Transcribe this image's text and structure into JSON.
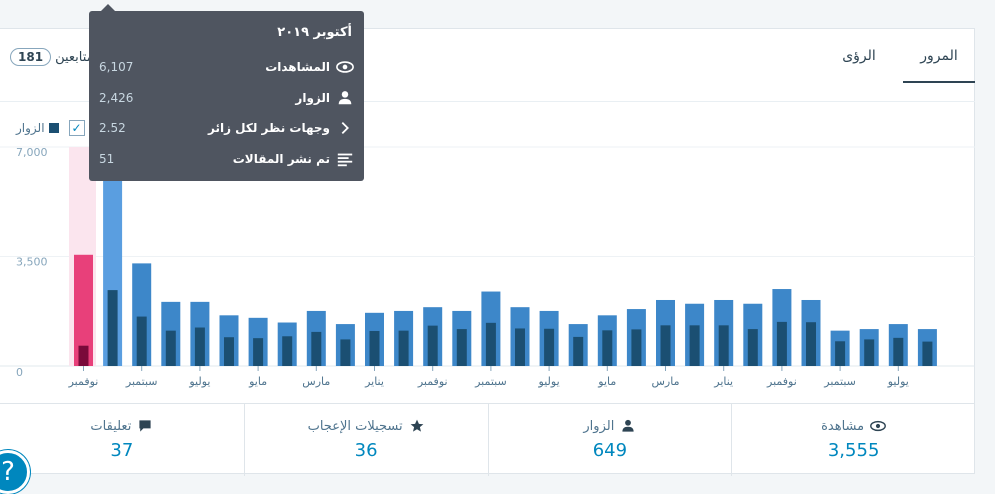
{
  "tabs": {
    "views": "المرور",
    "insights": "الرؤى"
  },
  "followers": {
    "count": "181",
    "label": "متابعين"
  },
  "legend": {
    "visitors": "الزوار"
  },
  "chart_data": {
    "type": "bar",
    "ylim": [
      0,
      7000
    ],
    "yticks": [
      "7,000",
      "3,500",
      "0"
    ],
    "categories": [
      "",
      "",
      "",
      "",
      "",
      "",
      "",
      "",
      "",
      "",
      "",
      "",
      "",
      "",
      "",
      "",
      "",
      "",
      "",
      "",
      "",
      "",
      "",
      "",
      "",
      "",
      "",
      "",
      "",
      ""
    ],
    "x_tick_labels": [
      "نوفمبر",
      "سبتمبر",
      "يوليو",
      "مايو",
      "مارس",
      "يناير",
      "نوفمبر",
      "سبتمبر",
      "يوليو",
      "مايو",
      "مارس",
      "يناير",
      "نوفمبر",
      "سبتمبر",
      "يوليو"
    ],
    "series": [
      {
        "name": "",
        "values": [
          3555,
          6107,
          3280,
          2050,
          2050,
          1620,
          1540,
          1390,
          1760,
          1340,
          1700,
          1760,
          1880,
          1760,
          2380,
          1880,
          1760,
          1340,
          1620,
          1820,
          2110,
          1990,
          2110,
          1990,
          2460,
          2110,
          1130,
          1180,
          1340,
          1180
        ]
      },
      {
        "name": "الزوار",
        "values": [
          649,
          2426,
          1580,
          1130,
          1230,
          920,
          890,
          950,
          1090,
          850,
          1120,
          1130,
          1290,
          1180,
          1380,
          1200,
          1190,
          930,
          1140,
          1170,
          1300,
          1300,
          1300,
          1180,
          1410,
          1400,
          790,
          850,
          900,
          780
        ]
      }
    ],
    "selected_index": 0,
    "highlight_index": 1
  },
  "tooltip": {
    "title": "أكتوبر ٢٠١٩",
    "rows": [
      {
        "label": "المشاهدات",
        "value": "6,107",
        "icon": "eye-icon"
      },
      {
        "label": "الزوار",
        "value": "2,426",
        "icon": "person-icon"
      },
      {
        "label": "وجهات نظر لكل زائر",
        "value": "2.52",
        "icon": "chevron-icon"
      },
      {
        "label": "تم نشر المقالات",
        "value": "51",
        "icon": "posts-icon"
      }
    ]
  },
  "stats": [
    {
      "label": "مشاهدة",
      "value": "3,555",
      "icon": "eye-icon"
    },
    {
      "label": "الزوار",
      "value": "649",
      "icon": "person-icon"
    },
    {
      "label": "تسجيلات الإعجاب",
      "value": "36",
      "icon": "star-icon"
    },
    {
      "label": "تعليقات",
      "value": "37",
      "icon": "comment-icon"
    }
  ],
  "help": {
    "glyph": "?"
  },
  "colors": {
    "views": "#3d87c9",
    "visitors": "#1b4f72",
    "highlight_views": "#5a9ee0",
    "selected_views": "#e8407a",
    "selected_visitors": "#7a0a3a",
    "selected_bg": "#fbe5ee",
    "accent": "#0087be"
  }
}
